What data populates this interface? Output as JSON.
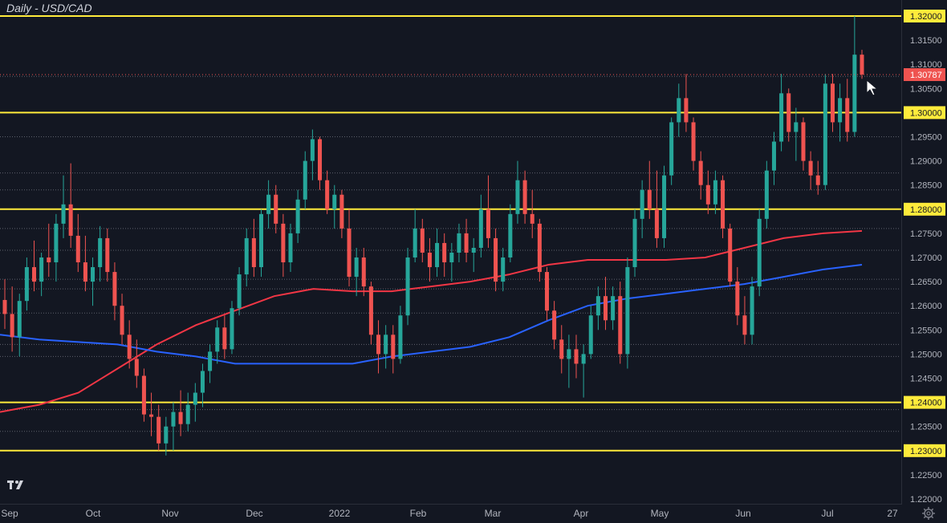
{
  "title": "Daily - USD/CAD",
  "colors": {
    "background": "#131722",
    "up": "#26a69a",
    "down": "#ef5350",
    "ma_fast": "#f23645",
    "ma_slow": "#2962ff",
    "level_line": "#ffeb3b",
    "last_price_label": "#ef5350"
  },
  "icons": {
    "logo": "tradingview-logo-icon",
    "settings": "gear-icon"
  },
  "chart_data": {
    "type": "candlestick",
    "title": "Daily - USD/CAD",
    "x_labels": [
      "Sep",
      "Oct",
      "Nov",
      "Dec",
      "2022",
      "Feb",
      "Mar",
      "Apr",
      "May",
      "Jun",
      "Jul",
      "27"
    ],
    "y_ticks": [
      1.32,
      1.315,
      1.31,
      1.305,
      1.3,
      1.295,
      1.29,
      1.285,
      1.28,
      1.275,
      1.27,
      1.265,
      1.26,
      1.255,
      1.25,
      1.245,
      1.24,
      1.235,
      1.23,
      1.225,
      1.22
    ],
    "y_tick_labels": [
      "1.32000",
      "1.31500",
      "1.31000",
      "1.30500",
      "1.30000",
      "1.29500",
      "1.29000",
      "1.28500",
      "1.28000",
      "1.27500",
      "1.27000",
      "1.26500",
      "1.26000",
      "1.25500",
      "1.25000",
      "1.24500",
      "1.24000",
      "1.23500",
      "1.23000",
      "1.22500",
      "1.22000"
    ],
    "ylim": [
      1.2195,
      1.3215
    ],
    "horizontal_levels": [
      1.32,
      1.3,
      1.28,
      1.24,
      1.23
    ],
    "highlighted_level_labels": [
      "1.32000",
      "1.30000",
      "1.28000",
      "1.24000",
      "1.23000"
    ],
    "last_price": 1.30787,
    "last_price_label": "1.30787",
    "dotted_levels": [
      1.3075,
      1.3,
      1.295,
      1.2875,
      1.284,
      1.276,
      1.2715,
      1.2655,
      1.2635,
      1.2585,
      1.252,
      1.2495,
      1.2385,
      1.234
    ],
    "candles": [
      {
        "m": "Sep",
        "o": 1.2612,
        "h": 1.2655,
        "l": 1.2552,
        "c": 1.2583
      },
      {
        "m": "Sep",
        "o": 1.2583,
        "h": 1.264,
        "l": 1.2505,
        "c": 1.2535
      },
      {
        "m": "Sep",
        "o": 1.2535,
        "h": 1.2625,
        "l": 1.2495,
        "c": 1.261
      },
      {
        "m": "Sep",
        "o": 1.261,
        "h": 1.27,
        "l": 1.259,
        "c": 1.268
      },
      {
        "m": "Sep",
        "o": 1.268,
        "h": 1.2735,
        "l": 1.263,
        "c": 1.265
      },
      {
        "m": "Sep",
        "o": 1.265,
        "h": 1.271,
        "l": 1.262,
        "c": 1.27
      },
      {
        "m": "Sep",
        "o": 1.27,
        "h": 1.277,
        "l": 1.266,
        "c": 1.269
      },
      {
        "m": "Sep",
        "o": 1.269,
        "h": 1.279,
        "l": 1.265,
        "c": 1.277
      },
      {
        "m": "Sep",
        "o": 1.277,
        "h": 1.287,
        "l": 1.274,
        "c": 1.281
      },
      {
        "m": "Sep",
        "o": 1.281,
        "h": 1.2895,
        "l": 1.272,
        "c": 1.2745
      },
      {
        "m": "Sep",
        "o": 1.2745,
        "h": 1.279,
        "l": 1.267,
        "c": 1.269
      },
      {
        "m": "Sep",
        "o": 1.269,
        "h": 1.2745,
        "l": 1.263,
        "c": 1.265
      },
      {
        "m": "Sep",
        "o": 1.265,
        "h": 1.27,
        "l": 1.26,
        "c": 1.268
      },
      {
        "m": "Oct",
        "o": 1.268,
        "h": 1.2765,
        "l": 1.265,
        "c": 1.274
      },
      {
        "m": "Oct",
        "o": 1.274,
        "h": 1.276,
        "l": 1.265,
        "c": 1.267
      },
      {
        "m": "Oct",
        "o": 1.267,
        "h": 1.269,
        "l": 1.257,
        "c": 1.26
      },
      {
        "m": "Oct",
        "o": 1.26,
        "h": 1.2625,
        "l": 1.252,
        "c": 1.254
      },
      {
        "m": "Oct",
        "o": 1.254,
        "h": 1.257,
        "l": 1.247,
        "c": 1.249
      },
      {
        "m": "Oct",
        "o": 1.249,
        "h": 1.253,
        "l": 1.243,
        "c": 1.2455
      },
      {
        "m": "Oct",
        "o": 1.2455,
        "h": 1.247,
        "l": 1.236,
        "c": 1.2375
      },
      {
        "m": "Oct",
        "o": 1.2375,
        "h": 1.242,
        "l": 1.233,
        "c": 1.237
      },
      {
        "m": "Oct",
        "o": 1.237,
        "h": 1.2395,
        "l": 1.23,
        "c": 1.2315
      },
      {
        "m": "Oct",
        "o": 1.2315,
        "h": 1.237,
        "l": 1.229,
        "c": 1.235
      },
      {
        "m": "Oct",
        "o": 1.235,
        "h": 1.24,
        "l": 1.23,
        "c": 1.238
      },
      {
        "m": "Nov",
        "o": 1.238,
        "h": 1.2425,
        "l": 1.233,
        "c": 1.2355
      },
      {
        "m": "Nov",
        "o": 1.2355,
        "h": 1.242,
        "l": 1.234,
        "c": 1.2395
      },
      {
        "m": "Nov",
        "o": 1.2395,
        "h": 1.244,
        "l": 1.236,
        "c": 1.242
      },
      {
        "m": "Nov",
        "o": 1.242,
        "h": 1.248,
        "l": 1.239,
        "c": 1.2465
      },
      {
        "m": "Nov",
        "o": 1.2465,
        "h": 1.252,
        "l": 1.244,
        "c": 1.2505
      },
      {
        "m": "Nov",
        "o": 1.2505,
        "h": 1.257,
        "l": 1.248,
        "c": 1.2555
      },
      {
        "m": "Nov",
        "o": 1.2555,
        "h": 1.258,
        "l": 1.249,
        "c": 1.251
      },
      {
        "m": "Nov",
        "o": 1.251,
        "h": 1.261,
        "l": 1.25,
        "c": 1.2595
      },
      {
        "m": "Nov",
        "o": 1.2595,
        "h": 1.268,
        "l": 1.258,
        "c": 1.2665
      },
      {
        "m": "Nov",
        "o": 1.2665,
        "h": 1.276,
        "l": 1.264,
        "c": 1.274
      },
      {
        "m": "Nov",
        "o": 1.274,
        "h": 1.278,
        "l": 1.266,
        "c": 1.268
      },
      {
        "m": "Dec",
        "o": 1.268,
        "h": 1.28,
        "l": 1.266,
        "c": 1.279
      },
      {
        "m": "Dec",
        "o": 1.279,
        "h": 1.286,
        "l": 1.276,
        "c": 1.283
      },
      {
        "m": "Dec",
        "o": 1.283,
        "h": 1.285,
        "l": 1.275,
        "c": 1.277
      },
      {
        "m": "Dec",
        "o": 1.277,
        "h": 1.279,
        "l": 1.266,
        "c": 1.269
      },
      {
        "m": "Dec",
        "o": 1.269,
        "h": 1.277,
        "l": 1.267,
        "c": 1.275
      },
      {
        "m": "Dec",
        "o": 1.275,
        "h": 1.284,
        "l": 1.273,
        "c": 1.282
      },
      {
        "m": "Dec",
        "o": 1.282,
        "h": 1.292,
        "l": 1.28,
        "c": 1.29
      },
      {
        "m": "Dec",
        "o": 1.29,
        "h": 1.2965,
        "l": 1.286,
        "c": 1.2945
      },
      {
        "m": "Dec",
        "o": 1.2945,
        "h": 1.295,
        "l": 1.284,
        "c": 1.286
      },
      {
        "m": "Dec",
        "o": 1.286,
        "h": 1.288,
        "l": 1.279,
        "c": 1.28
      },
      {
        "m": "Dec",
        "o": 1.28,
        "h": 1.285,
        "l": 1.276,
        "c": 1.283
      },
      {
        "m": "2022",
        "o": 1.283,
        "h": 1.284,
        "l": 1.274,
        "c": 1.276
      },
      {
        "m": "2022",
        "o": 1.276,
        "h": 1.28,
        "l": 1.264,
        "c": 1.266
      },
      {
        "m": "2022",
        "o": 1.266,
        "h": 1.272,
        "l": 1.262,
        "c": 1.27
      },
      {
        "m": "2022",
        "o": 1.27,
        "h": 1.272,
        "l": 1.262,
        "c": 1.264
      },
      {
        "m": "2022",
        "o": 1.264,
        "h": 1.265,
        "l": 1.252,
        "c": 1.254
      },
      {
        "m": "2022",
        "o": 1.254,
        "h": 1.257,
        "l": 1.246,
        "c": 1.25
      },
      {
        "m": "2022",
        "o": 1.25,
        "h": 1.256,
        "l": 1.247,
        "c": 1.254
      },
      {
        "m": "2022",
        "o": 1.254,
        "h": 1.256,
        "l": 1.246,
        "c": 1.249
      },
      {
        "m": "2022",
        "o": 1.249,
        "h": 1.26,
        "l": 1.248,
        "c": 1.258
      },
      {
        "m": "2022",
        "o": 1.258,
        "h": 1.272,
        "l": 1.256,
        "c": 1.27
      },
      {
        "m": "Feb",
        "o": 1.27,
        "h": 1.28,
        "l": 1.269,
        "c": 1.276
      },
      {
        "m": "Feb",
        "o": 1.276,
        "h": 1.278,
        "l": 1.269,
        "c": 1.271
      },
      {
        "m": "Feb",
        "o": 1.271,
        "h": 1.274,
        "l": 1.265,
        "c": 1.268
      },
      {
        "m": "Feb",
        "o": 1.268,
        "h": 1.276,
        "l": 1.266,
        "c": 1.273
      },
      {
        "m": "Feb",
        "o": 1.273,
        "h": 1.275,
        "l": 1.266,
        "c": 1.269
      },
      {
        "m": "Feb",
        "o": 1.269,
        "h": 1.273,
        "l": 1.265,
        "c": 1.271
      },
      {
        "m": "Feb",
        "o": 1.271,
        "h": 1.277,
        "l": 1.269,
        "c": 1.275
      },
      {
        "m": "Feb",
        "o": 1.275,
        "h": 1.278,
        "l": 1.269,
        "c": 1.271
      },
      {
        "m": "Feb",
        "o": 1.271,
        "h": 1.274,
        "l": 1.267,
        "c": 1.272
      },
      {
        "m": "Mar",
        "o": 1.272,
        "h": 1.283,
        "l": 1.27,
        "c": 1.28
      },
      {
        "m": "Mar",
        "o": 1.28,
        "h": 1.287,
        "l": 1.272,
        "c": 1.274
      },
      {
        "m": "Mar",
        "o": 1.274,
        "h": 1.276,
        "l": 1.263,
        "c": 1.265
      },
      {
        "m": "Mar",
        "o": 1.265,
        "h": 1.272,
        "l": 1.263,
        "c": 1.27
      },
      {
        "m": "Mar",
        "o": 1.27,
        "h": 1.281,
        "l": 1.269,
        "c": 1.279
      },
      {
        "m": "Mar",
        "o": 1.279,
        "h": 1.29,
        "l": 1.277,
        "c": 1.286
      },
      {
        "m": "Mar",
        "o": 1.286,
        "h": 1.288,
        "l": 1.277,
        "c": 1.279
      },
      {
        "m": "Mar",
        "o": 1.279,
        "h": 1.284,
        "l": 1.274,
        "c": 1.277
      },
      {
        "m": "Mar",
        "o": 1.277,
        "h": 1.278,
        "l": 1.265,
        "c": 1.267
      },
      {
        "m": "Mar",
        "o": 1.267,
        "h": 1.268,
        "l": 1.257,
        "c": 1.259
      },
      {
        "m": "Apr",
        "o": 1.259,
        "h": 1.261,
        "l": 1.251,
        "c": 1.253
      },
      {
        "m": "Apr",
        "o": 1.253,
        "h": 1.256,
        "l": 1.246,
        "c": 1.249
      },
      {
        "m": "Apr",
        "o": 1.249,
        "h": 1.254,
        "l": 1.243,
        "c": 1.251
      },
      {
        "m": "Apr",
        "o": 1.251,
        "h": 1.254,
        "l": 1.245,
        "c": 1.248
      },
      {
        "m": "Apr",
        "o": 1.248,
        "h": 1.252,
        "l": 1.241,
        "c": 1.25
      },
      {
        "m": "Apr",
        "o": 1.25,
        "h": 1.26,
        "l": 1.249,
        "c": 1.258
      },
      {
        "m": "Apr",
        "o": 1.258,
        "h": 1.264,
        "l": 1.255,
        "c": 1.262
      },
      {
        "m": "Apr",
        "o": 1.262,
        "h": 1.266,
        "l": 1.255,
        "c": 1.257
      },
      {
        "m": "Apr",
        "o": 1.257,
        "h": 1.264,
        "l": 1.255,
        "c": 1.262
      },
      {
        "m": "Apr",
        "o": 1.262,
        "h": 1.265,
        "l": 1.248,
        "c": 1.25
      },
      {
        "m": "Apr",
        "o": 1.25,
        "h": 1.27,
        "l": 1.247,
        "c": 1.268
      },
      {
        "m": "May",
        "o": 1.268,
        "h": 1.28,
        "l": 1.266,
        "c": 1.278
      },
      {
        "m": "May",
        "o": 1.278,
        "h": 1.286,
        "l": 1.274,
        "c": 1.284
      },
      {
        "m": "May",
        "o": 1.284,
        "h": 1.29,
        "l": 1.278,
        "c": 1.28
      },
      {
        "m": "May",
        "o": 1.28,
        "h": 1.288,
        "l": 1.272,
        "c": 1.274
      },
      {
        "m": "May",
        "o": 1.274,
        "h": 1.289,
        "l": 1.272,
        "c": 1.287
      },
      {
        "m": "May",
        "o": 1.287,
        "h": 1.299,
        "l": 1.285,
        "c": 1.298
      },
      {
        "m": "May",
        "o": 1.298,
        "h": 1.306,
        "l": 1.295,
        "c": 1.303
      },
      {
        "m": "May",
        "o": 1.303,
        "h": 1.308,
        "l": 1.296,
        "c": 1.298
      },
      {
        "m": "May",
        "o": 1.298,
        "h": 1.299,
        "l": 1.288,
        "c": 1.29
      },
      {
        "m": "May",
        "o": 1.29,
        "h": 1.292,
        "l": 1.282,
        "c": 1.285
      },
      {
        "m": "May",
        "o": 1.285,
        "h": 1.288,
        "l": 1.279,
        "c": 1.281
      },
      {
        "m": "May",
        "o": 1.281,
        "h": 1.288,
        "l": 1.279,
        "c": 1.286
      },
      {
        "m": "Jun",
        "o": 1.286,
        "h": 1.287,
        "l": 1.274,
        "c": 1.276
      },
      {
        "m": "Jun",
        "o": 1.276,
        "h": 1.277,
        "l": 1.264,
        "c": 1.265
      },
      {
        "m": "Jun",
        "o": 1.265,
        "h": 1.268,
        "l": 1.256,
        "c": 1.258
      },
      {
        "m": "Jun",
        "o": 1.258,
        "h": 1.262,
        "l": 1.252,
        "c": 1.254
      },
      {
        "m": "Jun",
        "o": 1.254,
        "h": 1.266,
        "l": 1.252,
        "c": 1.264
      },
      {
        "m": "Jun",
        "o": 1.264,
        "h": 1.28,
        "l": 1.262,
        "c": 1.278
      },
      {
        "m": "Jun",
        "o": 1.278,
        "h": 1.29,
        "l": 1.276,
        "c": 1.288
      },
      {
        "m": "Jun",
        "o": 1.288,
        "h": 1.296,
        "l": 1.285,
        "c": 1.294
      },
      {
        "m": "Jun",
        "o": 1.294,
        "h": 1.308,
        "l": 1.292,
        "c": 1.304
      },
      {
        "m": "Jun",
        "o": 1.304,
        "h": 1.305,
        "l": 1.294,
        "c": 1.296
      },
      {
        "m": "Jun",
        "o": 1.296,
        "h": 1.301,
        "l": 1.29,
        "c": 1.298
      },
      {
        "m": "Jun",
        "o": 1.298,
        "h": 1.299,
        "l": 1.288,
        "c": 1.29
      },
      {
        "m": "Jul",
        "o": 1.29,
        "h": 1.292,
        "l": 1.284,
        "c": 1.287
      },
      {
        "m": "Jul",
        "o": 1.287,
        "h": 1.29,
        "l": 1.283,
        "c": 1.285
      },
      {
        "m": "Jul",
        "o": 1.285,
        "h": 1.308,
        "l": 1.284,
        "c": 1.306
      },
      {
        "m": "Jul",
        "o": 1.306,
        "h": 1.308,
        "l": 1.296,
        "c": 1.298
      },
      {
        "m": "Jul",
        "o": 1.298,
        "h": 1.306,
        "l": 1.294,
        "c": 1.303
      },
      {
        "m": "Jul",
        "o": 1.303,
        "h": 1.307,
        "l": 1.294,
        "c": 1.296
      },
      {
        "m": "Jul",
        "o": 1.296,
        "h": 1.32,
        "l": 1.295,
        "c": 1.312
      },
      {
        "m": "Jul",
        "o": 1.312,
        "h": 1.313,
        "l": 1.307,
        "c": 1.3079
      }
    ],
    "ma_fast": [
      1.238,
      1.2395,
      1.242,
      1.247,
      1.252,
      1.256,
      1.259,
      1.262,
      1.2635,
      1.263,
      1.263,
      1.264,
      1.265,
      1.2665,
      1.2685,
      1.2695,
      1.2695,
      1.2695,
      1.27,
      1.272,
      1.274,
      1.275,
      1.2755
    ],
    "ma_slow": [
      1.254,
      1.253,
      1.2525,
      1.252,
      1.2505,
      1.2495,
      1.248,
      1.248,
      1.248,
      1.248,
      1.2495,
      1.2505,
      1.2515,
      1.2535,
      1.257,
      1.26,
      1.2615,
      1.2625,
      1.2635,
      1.2645,
      1.266,
      1.2675,
      1.2685
    ]
  }
}
